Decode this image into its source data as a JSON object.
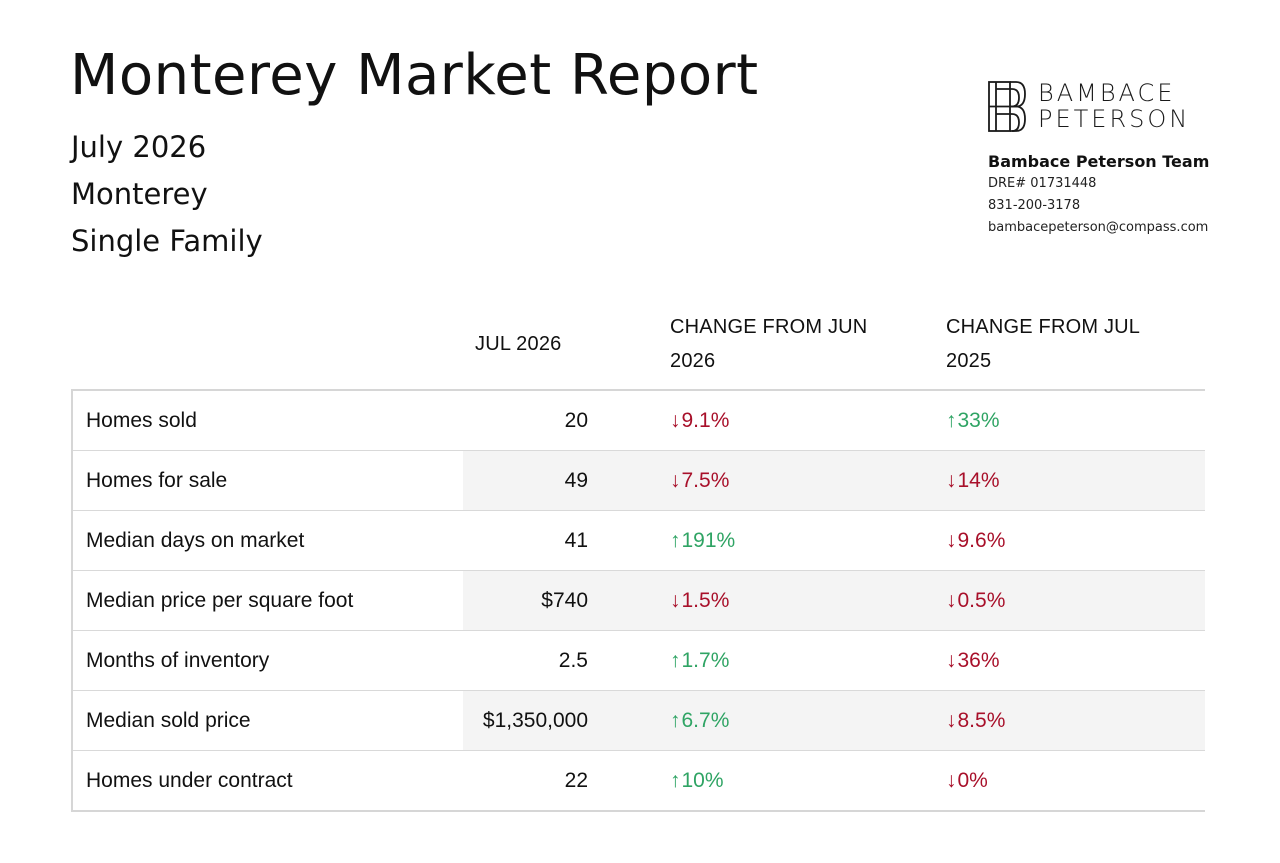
{
  "report": {
    "title": "Monterey Market Report",
    "month": "July 2026",
    "area": "Monterey",
    "property_type": "Single Family"
  },
  "brand": {
    "logo_line1": "BAMBACE",
    "logo_line2": "PETERSON",
    "team": "Bambace Peterson Team",
    "dre": "DRE# 01731448",
    "phone": "831-200-3178",
    "email": "bambacepeterson@compass.com"
  },
  "table": {
    "headers": {
      "metric": "",
      "current": "JUL 2026",
      "change_month": "CHANGE FROM JUN 2026",
      "change_year": "CHANGE FROM JUL 2025"
    },
    "colors": {
      "up": "#2fa464",
      "down": "#a8102a",
      "row_shade": "#f4f4f4"
    },
    "rows": [
      {
        "label": "Homes sold",
        "value": "20",
        "chg1": {
          "dir": "down",
          "arrow": "↓",
          "text": "9.1%"
        },
        "chg2": {
          "dir": "up",
          "arrow": "↑",
          "text": "33%"
        }
      },
      {
        "label": "Homes for sale",
        "value": "49",
        "chg1": {
          "dir": "down",
          "arrow": "↓",
          "text": "7.5%"
        },
        "chg2": {
          "dir": "down",
          "arrow": "↓",
          "text": "14%"
        }
      },
      {
        "label": "Median days on market",
        "value": "41",
        "chg1": {
          "dir": "up",
          "arrow": "↑",
          "text": "191%"
        },
        "chg2": {
          "dir": "down",
          "arrow": "↓",
          "text": "9.6%"
        }
      },
      {
        "label": "Median price per square foot",
        "value": "$740",
        "chg1": {
          "dir": "down",
          "arrow": "↓",
          "text": "1.5%"
        },
        "chg2": {
          "dir": "down",
          "arrow": "↓",
          "text": "0.5%"
        }
      },
      {
        "label": "Months of inventory",
        "value": "2.5",
        "chg1": {
          "dir": "up",
          "arrow": "↑",
          "text": "1.7%"
        },
        "chg2": {
          "dir": "down",
          "arrow": "↓",
          "text": "36%"
        }
      },
      {
        "label": "Median sold price",
        "value": "$1,350,000",
        "chg1": {
          "dir": "up",
          "arrow": "↑",
          "text": "6.7%"
        },
        "chg2": {
          "dir": "down",
          "arrow": "↓",
          "text": "8.5%"
        }
      },
      {
        "label": "Homes under contract",
        "value": "22",
        "chg1": {
          "dir": "up",
          "arrow": "↑",
          "text": "10%"
        },
        "chg2": {
          "dir": "down",
          "arrow": "↓",
          "text": "0%"
        }
      }
    ]
  }
}
